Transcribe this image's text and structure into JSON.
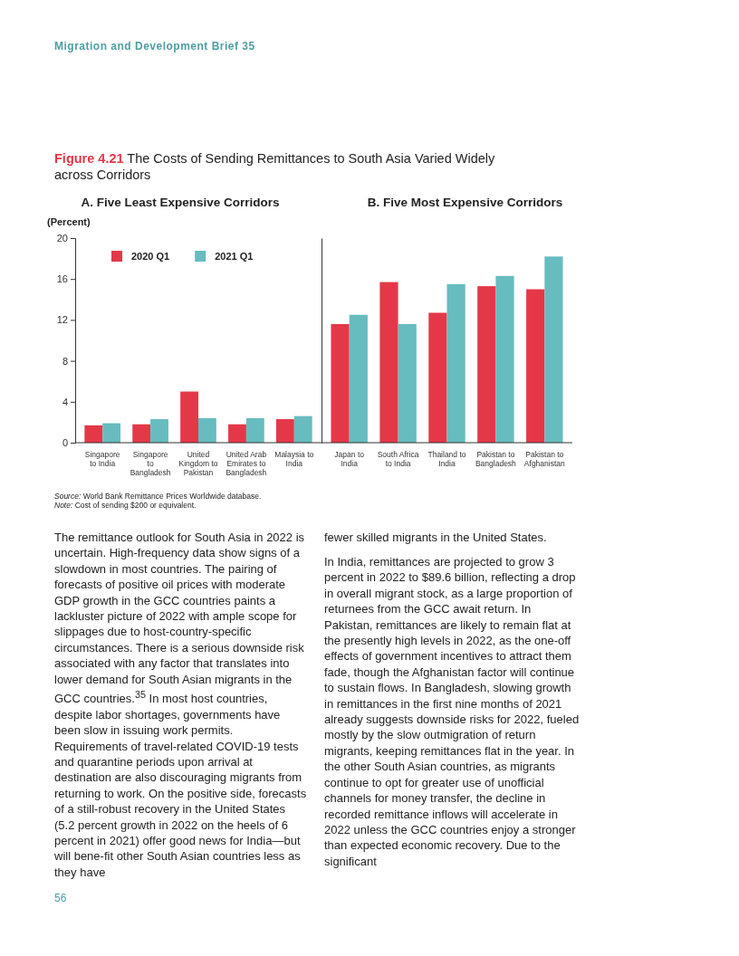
{
  "chart_data": [
    {
      "type": "bar",
      "title": "A. Five Least Expensive Corridors",
      "ylabel": "(Percent)",
      "categories": [
        "Singapore to India",
        "Singapore to Bangladesh",
        "United Kingdom to Pakistan",
        "United Arab Emirates to Bangladesh",
        "Malaysia to India"
      ],
      "series": [
        {
          "name": "2020 Q1",
          "color": "#e43848",
          "values": [
            1.7,
            1.8,
            5.0,
            1.8,
            2.3
          ]
        },
        {
          "name": "2021 Q1",
          "color": "#67bcbf",
          "values": [
            1.9,
            2.3,
            2.4,
            2.4,
            2.6
          ]
        }
      ],
      "ylim": [
        0,
        20
      ],
      "yticks": [
        0,
        4,
        8,
        12,
        16,
        20
      ],
      "legend": "top",
      "annotations": [
        "Migration and Development Brief 35",
        "Figure 4.21 The Costs of Sending Remittances to South Asia Varied Widely across Corridors",
        "Source: World Bank Remittance Prices Worldwide database.",
        "Note: Cost of sending $200 or equivalent.",
        "The remittance outlook for South Asia in 2022 is uncertain. High-frequency data show signs of a slowdown in most countries. The pairing of forecasts of positive oil prices with moderate GDP growth in the GCC countries paints a lackluster picture of 2022 with ample scope for slippages due to host-country-specific circumstances. There is a serious downside risk associated with any factor that translates into lower demand for South Asian migrants in the GCC countries.$^{35}$ In most host countries, despite labor shortages, governments have been slow in issuing work permits. Requirements of travel-related COVID-19 tests and quarantine periods upon arrival at destination are also discouraging migrants from returning to work. On the positive side, forecasts of a still-robust recovery in the United States (5.2 percent growth in 2022 on the heels of 6 percent in 2021) offer good news for India—but will bene-fit other South Asian countries less as they have",
        "fewer skilled migrants in the United States.",
        "In India, remittances are projected to grow 3 percent in 2022 to $89.6 billion, reflecting a drop in overall migrant stock, as a large proportion of returnees from the GCC await return. In Pakistan, remittances are likely to remain flat at the presently high levels in 2022, as the one-off effects of government incentives to attract them fade, though the Afghanistan factor will continue to sustain flows. In Bangladesh, slowing growth in remittances in the first nine months of 2021 already suggests downside risks for 2022, fueled mostly by the slow outmigration of return migrants, keeping remittances flat in the year. In the other South Asian countries, as migrants continue to opt for greater use of unofficial channels for money transfer, the decline in recorded remittance inflows will accelerate in 2022 unless the GCC countries enjoy a stronger than expected economic recovery. Due to the significant",
        "56"
      ]
    },
    {
      "type": "bar",
      "title": "B. Five Most Expensive Corridors",
      "categories": [
        "Japan to India",
        "South Africa to India",
        "Thailand to India",
        "Pakistan to Bangladesh",
        "Pakistan to Afghanistan"
      ],
      "series": [
        {
          "color": "#e43848",
          "values": [
            11.6,
            15.7,
            12.7,
            15.3,
            15.0
          ]
        },
        {
          "color": "#67bcbf",
          "values": [
            12.5,
            11.6,
            15.5,
            16.3,
            18.2
          ]
        }
      ],
      "ylim": [
        0,
        20
      ],
      "yticks": [
        0,
        4,
        8,
        12,
        16,
        20
      ],
      "tick_labels": "x"
    }
  ]
}
